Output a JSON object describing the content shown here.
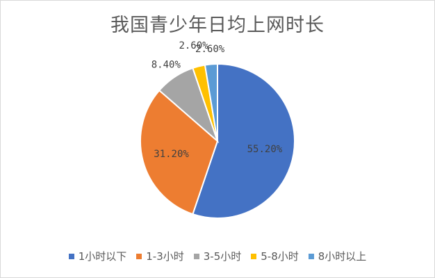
{
  "chart_data": {
    "type": "pie",
    "title": "我国青少年日均上网时长",
    "categories": [
      "1小时以下",
      "1-3小时",
      "3-5小时",
      "5-8小时",
      "8小时以上"
    ],
    "values": [
      55.2,
      31.2,
      8.4,
      2.6,
      2.6
    ],
    "data_labels": [
      "55.20%",
      "31.20%",
      "8.40%",
      "2.60%",
      "2.60%"
    ],
    "colors": [
      "#4472C4",
      "#ED7D31",
      "#A5A5A5",
      "#FFC000",
      "#5B9BD5"
    ],
    "legend_position": "bottom"
  }
}
